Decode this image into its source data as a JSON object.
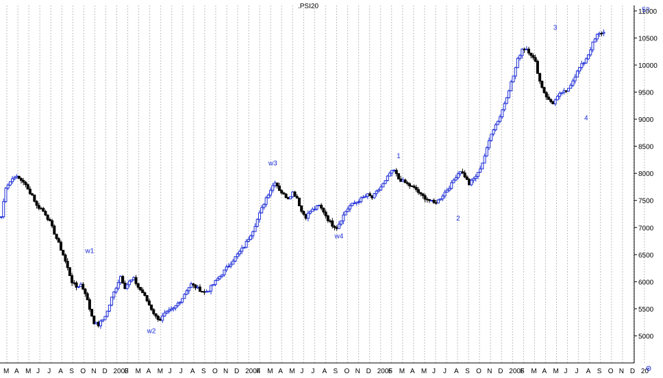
{
  "chart_data": {
    "type": "candlestick",
    "title": ".PSI20",
    "ylim": [
      4500,
      11100
    ],
    "y_ticks": [
      5000,
      5500,
      6000,
      6500,
      7000,
      7500,
      8000,
      8500,
      9000,
      9500,
      10000,
      10500,
      11000
    ],
    "x_tick_labels": [
      "M",
      "A",
      "M",
      "J",
      "J",
      "A",
      "S",
      "O",
      "N",
      "D",
      "2003",
      "F",
      "M",
      "A",
      "M",
      "J",
      "J",
      "A",
      "S",
      "O",
      "N",
      "D",
      "2004",
      "F",
      "M",
      "A",
      "M",
      "J",
      "J",
      "A",
      "S",
      "O",
      "N",
      "D",
      "2005",
      "F",
      "M",
      "A",
      "M",
      "J",
      "J",
      "A",
      "S",
      "O",
      "N",
      "D",
      "2006",
      "F",
      "M",
      "A",
      "M",
      "J",
      "J",
      "A",
      "S",
      "O",
      "N",
      "D",
      "20"
    ],
    "grid": true,
    "colors": {
      "up": "#1a2ad6",
      "down": "#000000",
      "annotation": "#1a2ad6",
      "grid": "#bdbdbd",
      "axis": "#000000"
    },
    "close_path": [
      [
        0,
        7200
      ],
      [
        2,
        7750
      ],
      [
        4,
        7850
      ],
      [
        6,
        7950
      ],
      [
        8,
        7900
      ],
      [
        10,
        7850
      ],
      [
        12,
        7700
      ],
      [
        14,
        7600
      ],
      [
        16,
        7400
      ],
      [
        18,
        7350
      ],
      [
        20,
        7250
      ],
      [
        22,
        7100
      ],
      [
        24,
        6900
      ],
      [
        26,
        6700
      ],
      [
        28,
        6500
      ],
      [
        30,
        6250
      ],
      [
        32,
        6000
      ],
      [
        34,
        5900
      ],
      [
        36,
        5950
      ],
      [
        38,
        5800
      ],
      [
        40,
        5500
      ],
      [
        42,
        5250
      ],
      [
        44,
        5200
      ],
      [
        46,
        5300
      ],
      [
        48,
        5450
      ],
      [
        50,
        5700
      ],
      [
        52,
        5900
      ],
      [
        54,
        6100
      ],
      [
        56,
        5900
      ],
      [
        58,
        6000
      ],
      [
        60,
        6050
      ],
      [
        62,
        5900
      ],
      [
        64,
        5800
      ],
      [
        66,
        5650
      ],
      [
        68,
        5500
      ],
      [
        70,
        5350
      ],
      [
        72,
        5300
      ],
      [
        74,
        5400
      ],
      [
        76,
        5450
      ],
      [
        78,
        5500
      ],
      [
        80,
        5600
      ],
      [
        82,
        5700
      ],
      [
        84,
        5850
      ],
      [
        86,
        5950
      ],
      [
        88,
        5900
      ],
      [
        90,
        5850
      ],
      [
        92,
        5800
      ],
      [
        94,
        5850
      ],
      [
        96,
        5950
      ],
      [
        98,
        6050
      ],
      [
        100,
        6150
      ],
      [
        102,
        6250
      ],
      [
        104,
        6350
      ],
      [
        106,
        6450
      ],
      [
        108,
        6550
      ],
      [
        110,
        6650
      ],
      [
        112,
        6800
      ],
      [
        114,
        6950
      ],
      [
        116,
        7150
      ],
      [
        118,
        7350
      ],
      [
        120,
        7550
      ],
      [
        122,
        7700
      ],
      [
        124,
        7850
      ],
      [
        126,
        7700
      ],
      [
        128,
        7600
      ],
      [
        130,
        7550
      ],
      [
        132,
        7650
      ],
      [
        134,
        7550
      ],
      [
        136,
        7300
      ],
      [
        138,
        7200
      ],
      [
        140,
        7300
      ],
      [
        142,
        7350
      ],
      [
        144,
        7400
      ],
      [
        146,
        7300
      ],
      [
        148,
        7150
      ],
      [
        150,
        7050
      ],
      [
        152,
        7000
      ],
      [
        154,
        7150
      ],
      [
        156,
        7300
      ],
      [
        158,
        7400
      ],
      [
        160,
        7450
      ],
      [
        162,
        7500
      ],
      [
        164,
        7550
      ],
      [
        166,
        7600
      ],
      [
        168,
        7550
      ],
      [
        170,
        7650
      ],
      [
        172,
        7750
      ],
      [
        174,
        7850
      ],
      [
        176,
        8000
      ],
      [
        178,
        8050
      ],
      [
        180,
        7900
      ],
      [
        182,
        7850
      ],
      [
        184,
        7800
      ],
      [
        186,
        7750
      ],
      [
        188,
        7700
      ],
      [
        190,
        7600
      ],
      [
        192,
        7550
      ],
      [
        194,
        7500
      ],
      [
        196,
        7450
      ],
      [
        198,
        7500
      ],
      [
        200,
        7600
      ],
      [
        202,
        7700
      ],
      [
        204,
        7800
      ],
      [
        206,
        7950
      ],
      [
        208,
        8050
      ],
      [
        210,
        7950
      ],
      [
        212,
        7800
      ],
      [
        214,
        7900
      ],
      [
        216,
        8000
      ],
      [
        218,
        8200
      ],
      [
        220,
        8450
      ],
      [
        222,
        8750
      ],
      [
        224,
        8900
      ],
      [
        226,
        9050
      ],
      [
        228,
        9300
      ],
      [
        230,
        9550
      ],
      [
        232,
        9800
      ],
      [
        234,
        10100
      ],
      [
        236,
        10300
      ],
      [
        238,
        10300
      ],
      [
        240,
        10200
      ],
      [
        242,
        10050
      ],
      [
        244,
        9700
      ],
      [
        246,
        9500
      ],
      [
        248,
        9350
      ],
      [
        250,
        9300
      ],
      [
        252,
        9400
      ],
      [
        254,
        9500
      ],
      [
        256,
        9500
      ],
      [
        258,
        9650
      ],
      [
        260,
        9800
      ],
      [
        262,
        9950
      ],
      [
        264,
        10050
      ],
      [
        266,
        10200
      ],
      [
        268,
        10400
      ],
      [
        270,
        10550
      ],
      [
        272,
        10600
      ],
      [
        274,
        10600
      ]
    ],
    "x_domain": [
      0,
      275
    ],
    "annotations": [
      {
        "label": "w1",
        "x": 40,
        "y": 6530
      },
      {
        "label": "w2",
        "x": 68,
        "y": 5050
      },
      {
        "label": "w3",
        "x": 123,
        "y": 8150
      },
      {
        "label": "w4",
        "x": 153,
        "y": 6800
      },
      {
        "label": "1",
        "x": 180,
        "y": 8280
      },
      {
        "label": "2",
        "x": 207,
        "y": 7130
      },
      {
        "label": "3",
        "x": 251,
        "y": 10650
      },
      {
        "label": "4",
        "x": 265,
        "y": 8980
      },
      {
        "label": "5?",
        "x": 292,
        "y": 10980
      }
    ]
  }
}
